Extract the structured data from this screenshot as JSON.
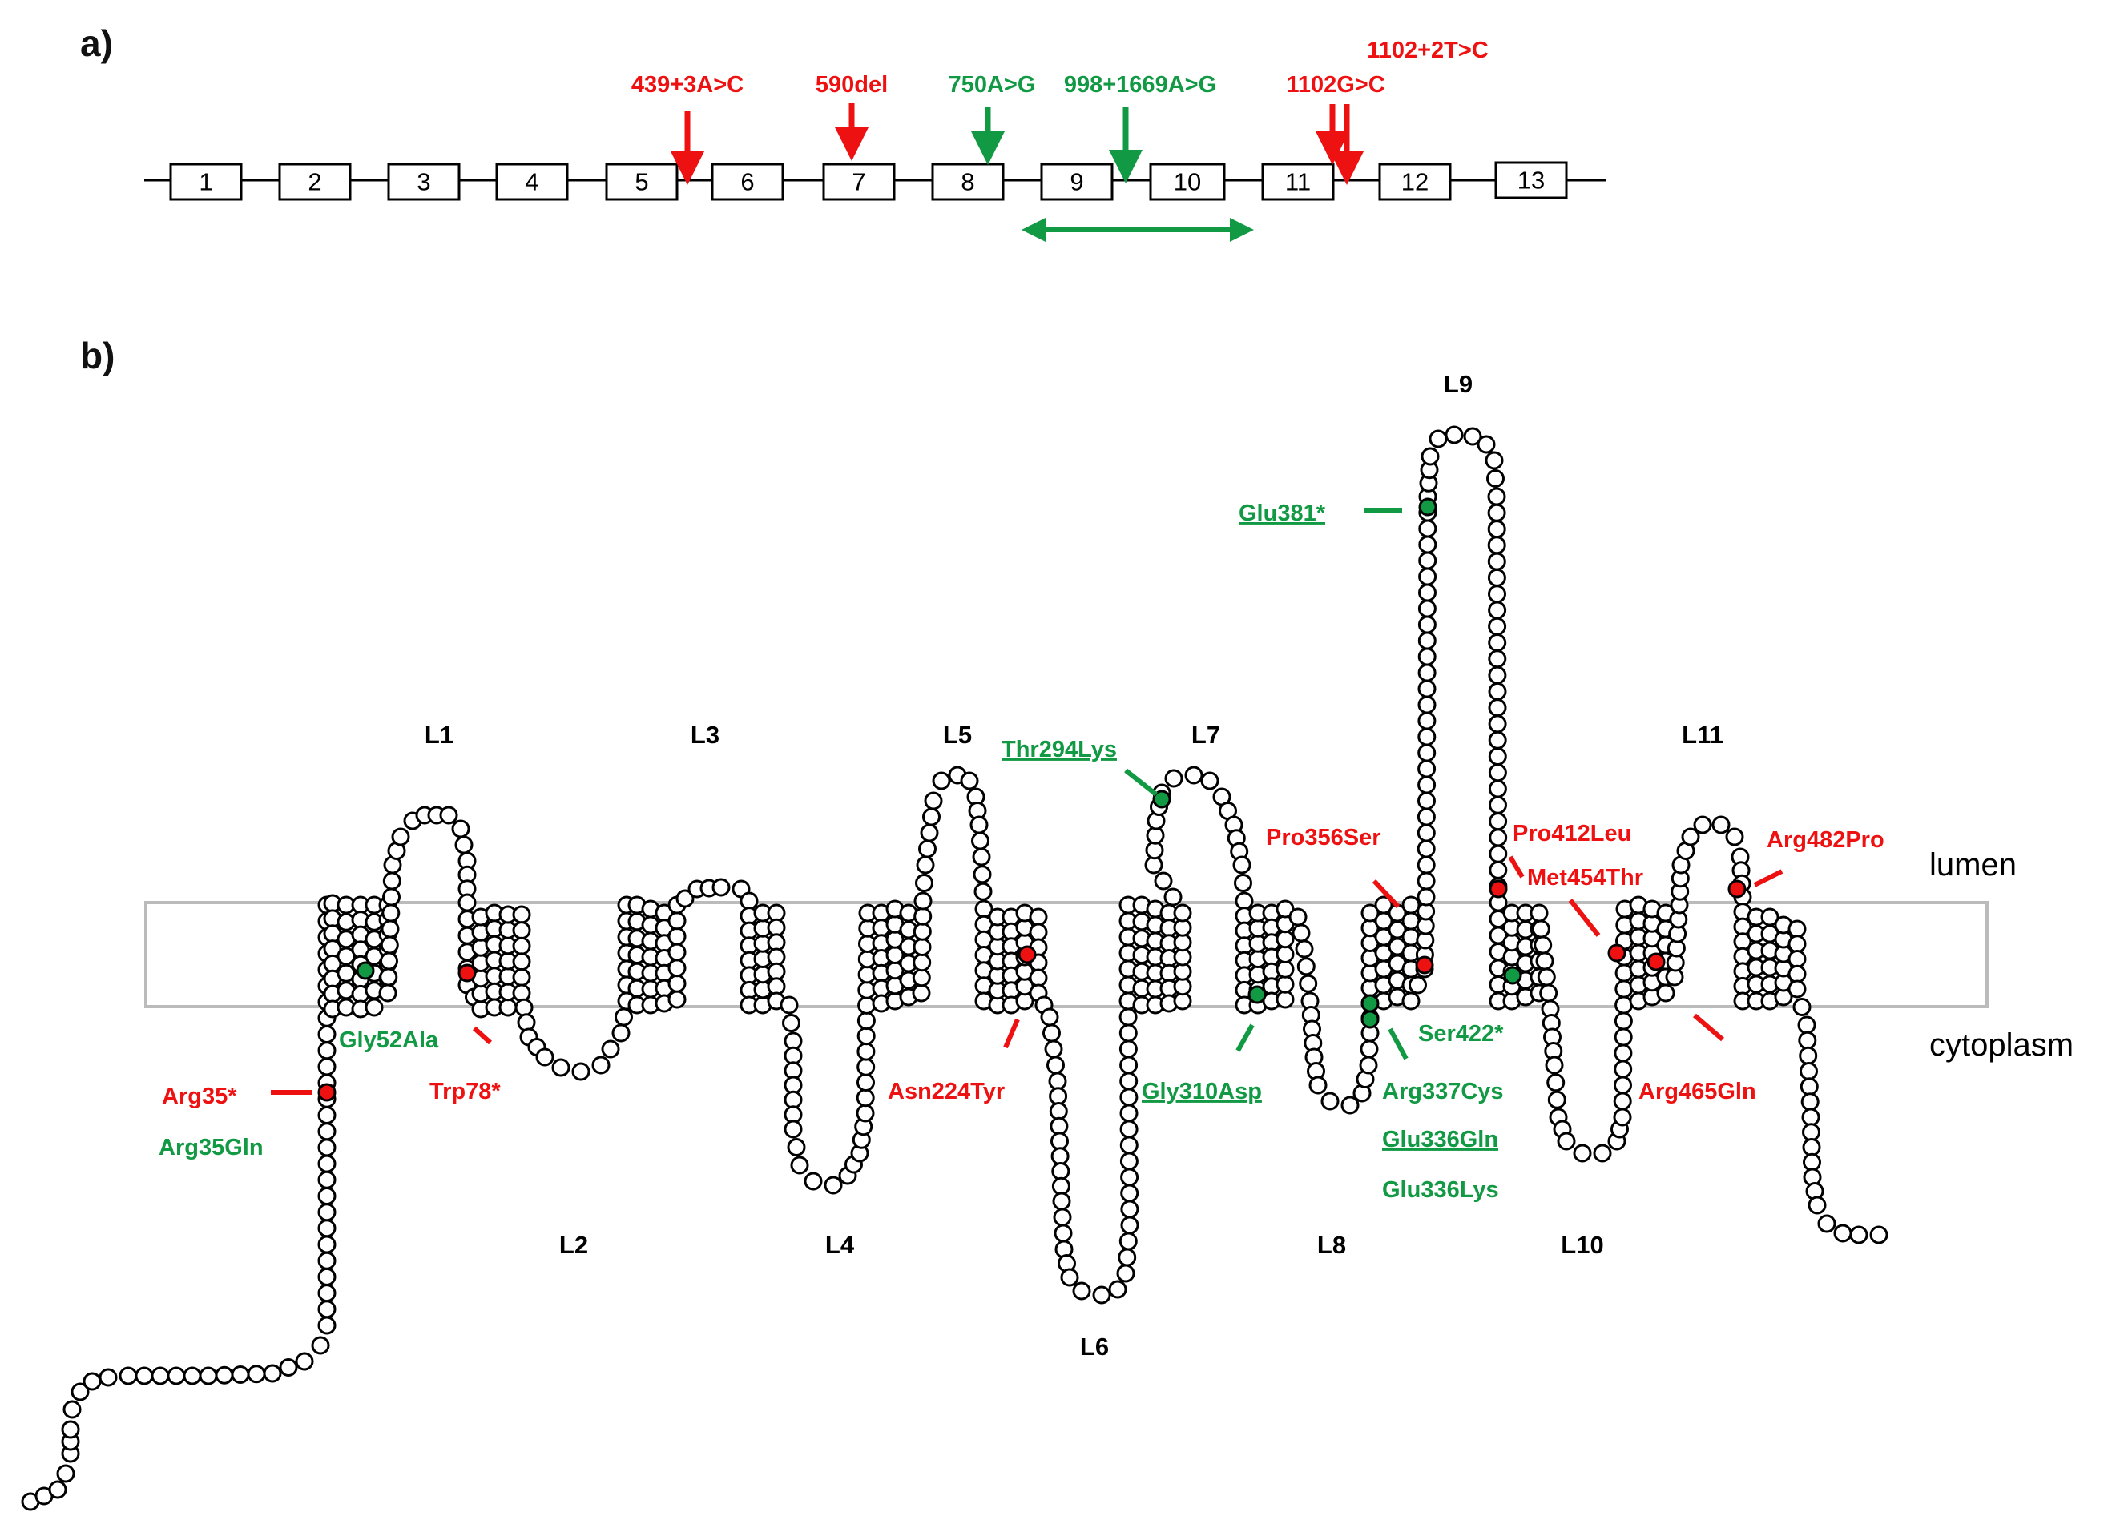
{
  "panels": {
    "a": "a)",
    "b": "b)"
  },
  "colors": {
    "pathogenic": "#ee1111",
    "benign": "#119944",
    "outline": "#000000",
    "membrane": "#bbbbbb"
  },
  "gene": {
    "exons": [
      "1",
      "2",
      "3",
      "4",
      "5",
      "6",
      "7",
      "8",
      "9",
      "10",
      "11",
      "12",
      "13"
    ],
    "variants": [
      {
        "label": "439+3A>C",
        "color": "red",
        "target": "intron 5-6"
      },
      {
        "label": "590del",
        "color": "red",
        "target": "exon 7"
      },
      {
        "label": "750A>G",
        "color": "green",
        "target": "exon 8"
      },
      {
        "label": "998+1669A>G",
        "color": "green",
        "target": "intron 9-10"
      },
      {
        "label": "1102G>C",
        "color": "red",
        "target": "exon 11"
      },
      {
        "label": "1102+2T>C",
        "color": "red",
        "target": "intron 11-12"
      }
    ],
    "exon_skipping_span": "exons 9-10"
  },
  "protein": {
    "compartments": {
      "top": "lumen",
      "bottom": "cytoplasm"
    },
    "loops": [
      "L1",
      "L2",
      "L3",
      "L4",
      "L5",
      "L6",
      "L7",
      "L8",
      "L9",
      "L10",
      "L11"
    ],
    "mutations": [
      {
        "label": "Arg35*",
        "color": "red",
        "underlined": false
      },
      {
        "label": "Arg35Gln",
        "color": "green",
        "underlined": false
      },
      {
        "label": "Gly52Ala",
        "color": "green",
        "underlined": false
      },
      {
        "label": "Trp78*",
        "color": "red",
        "underlined": false
      },
      {
        "label": "Asn224Tyr",
        "color": "red",
        "underlined": false
      },
      {
        "label": "Thr294Lys",
        "color": "green",
        "underlined": true
      },
      {
        "label": "Gly310Asp",
        "color": "green",
        "underlined": true
      },
      {
        "label": "Glu336Gln",
        "color": "green",
        "underlined": true
      },
      {
        "label": "Glu336Lys",
        "color": "green",
        "underlined": false
      },
      {
        "label": "Arg337Cys",
        "color": "green",
        "underlined": false
      },
      {
        "label": "Pro356Ser",
        "color": "red",
        "underlined": false
      },
      {
        "label": "Glu381*",
        "color": "green",
        "underlined": true
      },
      {
        "label": "Pro412Leu",
        "color": "red",
        "underlined": false
      },
      {
        "label": "Ser422*",
        "color": "green",
        "underlined": false
      },
      {
        "label": "Met454Thr",
        "color": "red",
        "underlined": false
      },
      {
        "label": "Arg465Gln",
        "color": "red",
        "underlined": false
      },
      {
        "label": "Arg482Pro",
        "color": "red",
        "underlined": false
      }
    ]
  }
}
